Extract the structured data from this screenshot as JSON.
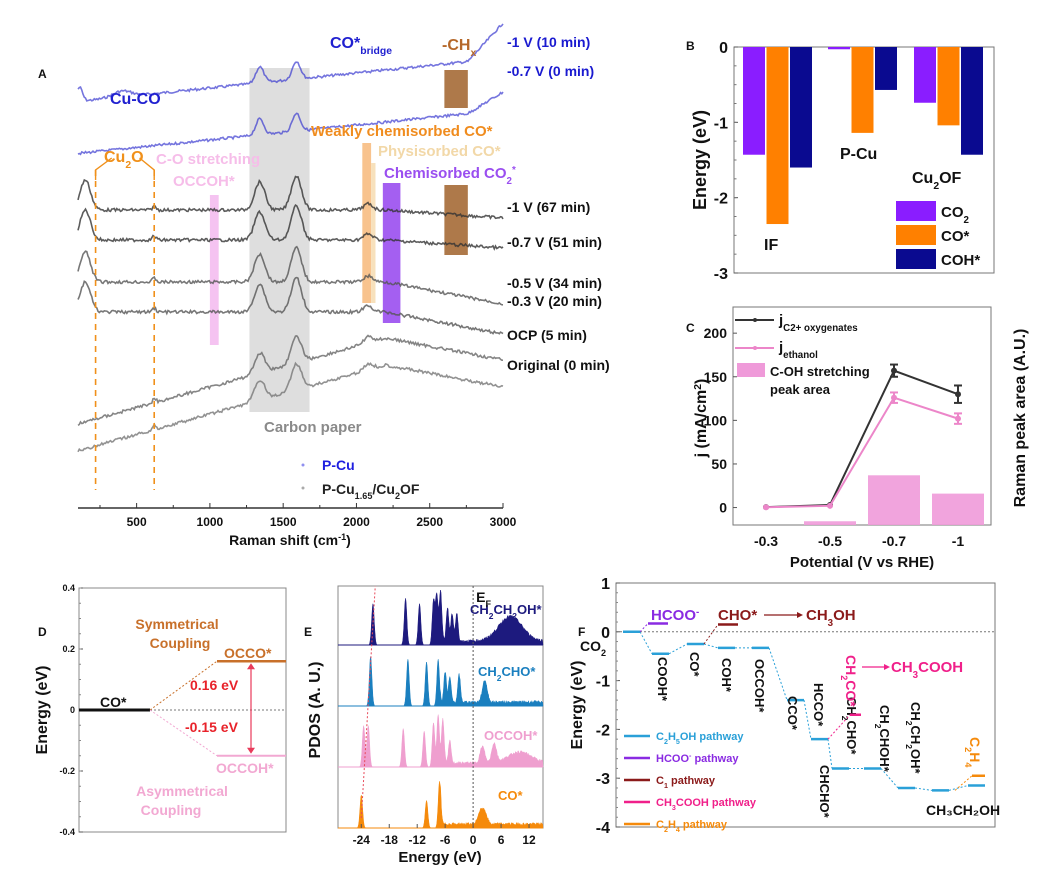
{
  "chart_data": [
    {
      "panel": "A",
      "type": "line",
      "title": "",
      "xlabel": "Raman shift (cm-1)",
      "xlim": [
        100,
        3000
      ],
      "xticks": [
        500,
        1000,
        1500,
        2000,
        2500,
        3000
      ],
      "ylabel": "",
      "series": [
        {
          "name": "-1 V (10 min)",
          "group": "P-Cu",
          "color": "#3a3ad0",
          "offset": 0
        },
        {
          "name": "-0.7 V (0 min)",
          "group": "P-Cu",
          "color": "#3a3ad0",
          "offset": 1
        },
        {
          "name": "-1 V (67 min)",
          "group": "P-Cu1.65/Cu2OF",
          "color": "#333333",
          "offset": 2
        },
        {
          "name": "-0.7 V (51 min)",
          "group": "P-Cu1.65/Cu2OF",
          "color": "#333333",
          "offset": 3
        },
        {
          "name": "-0.5 V (34 min)",
          "group": "P-Cu1.65/Cu2OF",
          "color": "#555555",
          "offset": 4
        },
        {
          "name": "-0.3 V (20 min)",
          "group": "P-Cu1.65/Cu2OF",
          "color": "#555555",
          "offset": 5
        },
        {
          "name": "OCP (5 min)",
          "group": "P-Cu1.65/Cu2OF",
          "color": "#666666",
          "offset": 6
        },
        {
          "name": "Original (0 min)",
          "group": "P-Cu1.65/Cu2OF",
          "color": "#777777",
          "offset": 7
        }
      ],
      "bands": [
        {
          "label": "Carbon paper",
          "from": 1270,
          "to": 1680,
          "color": "#d8d8d8"
        },
        {
          "label": "-CHx",
          "from": 2600,
          "to": 2760,
          "color": "#a0622a"
        },
        {
          "label": "Weakly chemisorbed CO*",
          "from": 2040,
          "to": 2100,
          "color": "#f7b97a"
        },
        {
          "label": "Physisorbed CO*",
          "from": 2100,
          "to": 2130,
          "color": "#f6dcb0"
        },
        {
          "label": "Chemisorbed CO2*",
          "from": 2180,
          "to": 2300,
          "color": "#9a4ef0"
        },
        {
          "label": "C-O stretching OCCOH*",
          "from": 1000,
          "to": 1060,
          "color": "#f3b9ee"
        }
      ],
      "annotations": {
        "cu_co": "Cu-CO",
        "co_bridge": "CO*",
        "co_bridge_sub": "bridge",
        "chx": "-CH",
        "chx_sub": "x",
        "cu2o_a": "Cu",
        "cu2o_sub": "2",
        "cu2o_b": "O",
        "co_stretch": "C-O stretching",
        "occoh": "OCCOH*",
        "weak_co": "Weakly chemisorbed CO*",
        "phys_co": "Physisorbed CO*",
        "chem_co2_a": "Chemisorbed CO",
        "chem_co2_sub": "2",
        "chem_co2_b": "*",
        "carbon_paper": "Carbon paper",
        "cu2o_lines": [
          220,
          620
        ]
      },
      "legend": [
        {
          "label": "P-Cu",
          "color": "#1f1fe0"
        },
        {
          "label_a": "P-Cu",
          "sub1": "1.65",
          "label_b": "/Cu",
          "sub2": "2",
          "label_c": "OF",
          "color": "#222222"
        }
      ]
    },
    {
      "panel": "B",
      "type": "bar",
      "ylabel": "Energy (eV)",
      "ylim": [
        -3,
        0
      ],
      "yticks": [
        0,
        -1,
        -2,
        -3
      ],
      "categories": [
        "IF",
        "P-Cu",
        "Cu2OF"
      ],
      "series": [
        {
          "name": "CO2",
          "color": "#8a1dff",
          "values": [
            -1.43,
            -0.03,
            -0.74
          ]
        },
        {
          "name": "CO*",
          "color": "#ff8000",
          "values": [
            -2.35,
            -1.14,
            -1.04
          ]
        },
        {
          "name": "COH*",
          "color": "#0a0a90",
          "values": [
            -1.6,
            -0.57,
            -1.43
          ]
        }
      ],
      "legend_position": "bottom-right"
    },
    {
      "panel": "C",
      "type": "line",
      "xlabel": "Potential (V vs RHE)",
      "ylabel": "j (mA/cm2)",
      "ylabel_right": "Raman peak area (A.U.)",
      "categories": [
        "-0.3",
        "-0.5",
        "-0.7",
        "-1"
      ],
      "ylim": [
        -20,
        230
      ],
      "yticks": [
        0,
        50,
        100,
        150,
        200
      ],
      "series": [
        {
          "name": "jC2+ oxygenates",
          "color": "#333333",
          "values": [
            0.5,
            3,
            157,
            130
          ],
          "errors": [
            1,
            2,
            7,
            10
          ]
        },
        {
          "name": "jethanol",
          "color": "#ec86c9",
          "values": [
            0.3,
            2,
            126,
            102
          ],
          "errors": [
            1,
            1,
            6,
            6
          ]
        }
      ],
      "bars": {
        "name": "C-OH stretching peak area",
        "color": "#ef9ad9",
        "values": [
          0,
          -18,
          37,
          16
        ]
      },
      "legend": [
        "jC2+ oxygenates",
        "jethanol",
        "C-OH stretching peak area"
      ]
    },
    {
      "panel": "D",
      "type": "line",
      "ylabel": "Energy (eV)",
      "ylim": [
        -0.4,
        0.4
      ],
      "yticks": [
        0.4,
        0.2,
        0,
        -0.2,
        -0.4
      ],
      "levels": [
        {
          "name": "CO*",
          "value": 0,
          "color": "#111111"
        },
        {
          "name": "OCCO*",
          "value": 0.16,
          "color": "#c8702a"
        },
        {
          "name": "OCCOH*",
          "value": -0.15,
          "color": "#f2a8d2"
        }
      ],
      "labels": {
        "sym1": "Symmetrical",
        "sym2": "Coupling",
        "asym1": "Asymmetrical",
        "asym2": "Coupling",
        "delta_up": "0.16 eV",
        "delta_down": "-0.15 eV"
      }
    },
    {
      "panel": "E",
      "type": "area",
      "xlabel": "Energy (eV)",
      "ylabel": "PDOS (A. U.)",
      "xlim": [
        -29,
        15
      ],
      "xticks": [
        -24,
        -18,
        -12,
        -6,
        0,
        6,
        12
      ],
      "fermi_label": "E",
      "fermi_sub": "F",
      "series": [
        {
          "name": "CH2CH2OH*",
          "color": "#1d1a7e",
          "peaks": [
            [
              -21.5,
              0.75
            ],
            [
              -14.5,
              0.85
            ],
            [
              -11.5,
              0.75
            ],
            [
              -8.5,
              0.8
            ],
            [
              -7.8,
              0.9
            ],
            [
              -7,
              0.95
            ],
            [
              -5.5,
              0.6
            ],
            [
              -4.5,
              0.5
            ],
            [
              -3.5,
              0.5
            ],
            [
              8,
              0.45
            ]
          ]
        },
        {
          "name": "CH2CHO*",
          "color": "#1a7fbf",
          "peaks": [
            [
              -22,
              0.9
            ],
            [
              -14,
              0.85
            ],
            [
              -10,
              0.8
            ],
            [
              -7.5,
              0.85
            ],
            [
              -6,
              0.55
            ],
            [
              -5,
              0.45
            ],
            [
              -3,
              0.5
            ],
            [
              2.5,
              0.4
            ]
          ]
        },
        {
          "name": "OCCOH*",
          "color": "#ef9fcf",
          "peaks": [
            [
              -23.5,
              0.75
            ],
            [
              -22.5,
              0.75
            ],
            [
              -15,
              0.7
            ],
            [
              -10.5,
              0.65
            ],
            [
              -8.5,
              0.8
            ],
            [
              -7.5,
              0.95
            ],
            [
              -6.5,
              0.8
            ],
            [
              -5,
              0.4
            ],
            [
              2,
              0.3
            ],
            [
              4.5,
              0.35
            ],
            [
              10,
              0.2
            ]
          ]
        },
        {
          "name": "CO*",
          "color": "#f58a0b",
          "peaks": [
            [
              -24,
              0.6
            ],
            [
              -10,
              0.5
            ],
            [
              -7.2,
              0.85
            ],
            [
              1.5,
              0.22
            ],
            [
              2.5,
              0.22
            ]
          ]
        }
      ],
      "series_labels": [
        {
          "a": "CH",
          "s1": "2",
          "b": "CH",
          "s2": "2",
          "c": "OH*"
        },
        {
          "a": "CH",
          "s1": "2",
          "b": "CHO*",
          "s2": "",
          "c": ""
        },
        {
          "a": "OCCOH*",
          "s1": "",
          "b": "",
          "s2": "",
          "c": ""
        },
        {
          "a": "CO*",
          "s1": "",
          "b": "",
          "s2": "",
          "c": ""
        }
      ]
    },
    {
      "panel": "F",
      "type": "line",
      "ylabel": "Energy (eV)",
      "ylim": [
        -4,
        1
      ],
      "yticks": [
        1,
        0,
        -1,
        -2,
        -3,
        -4
      ],
      "steps": [
        {
          "name": "CO2",
          "value": 0
        },
        {
          "name": "COOH*",
          "value": -0.45
        },
        {
          "name": "CO*",
          "value": -0.25
        },
        {
          "name": "COH*",
          "value": -0.33
        },
        {
          "name": "OCCOH*",
          "value": -0.33
        },
        {
          "name": "CCO*",
          "value": -1.4
        },
        {
          "name": "HCCO*",
          "value": -2.2
        },
        {
          "name": "CHCHO*",
          "value": -2.8
        },
        {
          "name": "CH2CHO*",
          "value": -2.8
        },
        {
          "name": "CH2CHOH*",
          "value": -3.2
        },
        {
          "name": "CH2CH2OH*",
          "value": -3.25
        },
        {
          "name": "CH3CH2OH",
          "value": -3.15
        }
      ],
      "branches": [
        {
          "name": "HCOO-",
          "value": 0.17,
          "color": "#8a2be2"
        },
        {
          "name": "CHO*",
          "value": 0.15,
          "color": "#8b1a1a"
        },
        {
          "name": "CH2CO*",
          "value": -1.7,
          "color": "#f0208a"
        },
        {
          "name": "C2H4",
          "value": -2.95,
          "color": "#f58a0b"
        }
      ],
      "products": {
        "ch3oh": "CH3OH",
        "ch3cooh": "CH3COOH"
      },
      "legend": [
        {
          "name": "C2H5OH pathway",
          "color": "#2aa0d8"
        },
        {
          "name": "HCOO- pathway",
          "color": "#8a2be2"
        },
        {
          "name": "C1 pathway",
          "color": "#8b1a1a"
        },
        {
          "name": "CH3COOH pathway",
          "color": "#f0208a"
        },
        {
          "name": "C2H4 pathway",
          "color": "#f58a0b"
        }
      ]
    }
  ],
  "panel_labels": [
    "A",
    "B",
    "C",
    "D",
    "E",
    "F"
  ]
}
